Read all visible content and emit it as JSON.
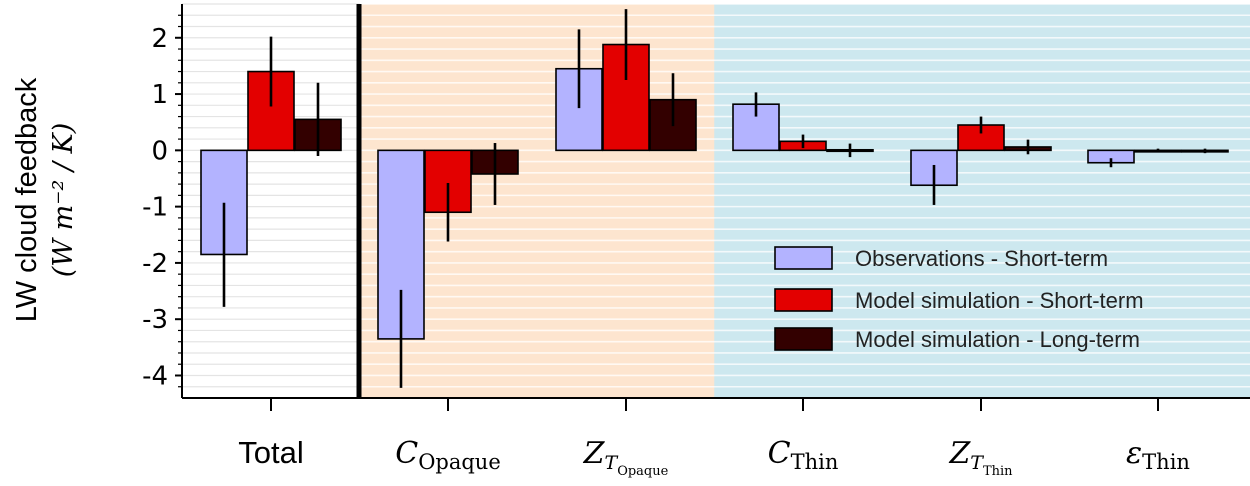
{
  "chart_data": {
    "type": "bar",
    "ylabel": "LW cloud feedback",
    "ylabel_unit": "(W m⁻² / K)",
    "ylim": [
      -4.4,
      2.6
    ],
    "yticks": [
      -4,
      -3,
      -2,
      -1,
      0,
      1,
      2
    ],
    "ytick_labels": [
      "-4",
      "-3",
      "-2",
      "-1",
      "0",
      "1",
      "2"
    ],
    "categories": [
      "Total",
      "C_Opaque",
      "Z_T_Opaque",
      "C_Thin",
      "Z_T_Thin",
      "ε_Thin"
    ],
    "category_labels": [
      {
        "main": "Total",
        "sub": "",
        "subsub": ""
      },
      {
        "main": "C",
        "sub": "Opaque",
        "subsub": ""
      },
      {
        "main": "Z",
        "sub": "T",
        "subsub": "Opaque"
      },
      {
        "main": "C",
        "sub": "Thin",
        "subsub": ""
      },
      {
        "main": "Z",
        "sub": "T",
        "subsub": "Thin"
      },
      {
        "main": "ε",
        "sub": "Thin",
        "subsub": ""
      }
    ],
    "series": [
      {
        "name": "Observations - Short-term",
        "color": "#b3b3ff",
        "values": [
          -1.85,
          -3.35,
          1.45,
          0.82,
          -0.62,
          -0.22
        ],
        "error_low": [
          -2.78,
          -4.22,
          0.75,
          0.6,
          -0.97,
          -0.3
        ],
        "error_high": [
          -0.93,
          -2.48,
          2.15,
          1.03,
          -0.26,
          -0.14
        ]
      },
      {
        "name": "Model simulation - Short-term",
        "color": "#e30000",
        "values": [
          1.4,
          -1.1,
          1.88,
          0.16,
          0.45,
          0.0
        ],
        "error_low": [
          0.78,
          -1.62,
          1.25,
          0.04,
          0.3,
          -0.03
        ],
        "error_high": [
          2.02,
          -0.58,
          2.51,
          0.28,
          0.6,
          0.03
        ]
      },
      {
        "name": "Model simulation - Long-term",
        "color": "#330000",
        "values": [
          0.55,
          -0.42,
          0.9,
          0.01,
          0.06,
          -0.01
        ],
        "error_low": [
          -0.1,
          -0.97,
          0.43,
          -0.12,
          -0.07,
          -0.05
        ],
        "error_high": [
          1.2,
          0.13,
          1.37,
          0.12,
          0.19,
          0.03
        ]
      }
    ],
    "regions": [
      {
        "categories": [
          0
        ],
        "color": "#ffffff"
      },
      {
        "categories": [
          1,
          2
        ],
        "color": "#fde5cf"
      },
      {
        "categories": [
          3,
          4,
          5
        ],
        "color": "#cde8ef"
      }
    ],
    "grid": true,
    "legend_position": "lower-right"
  }
}
